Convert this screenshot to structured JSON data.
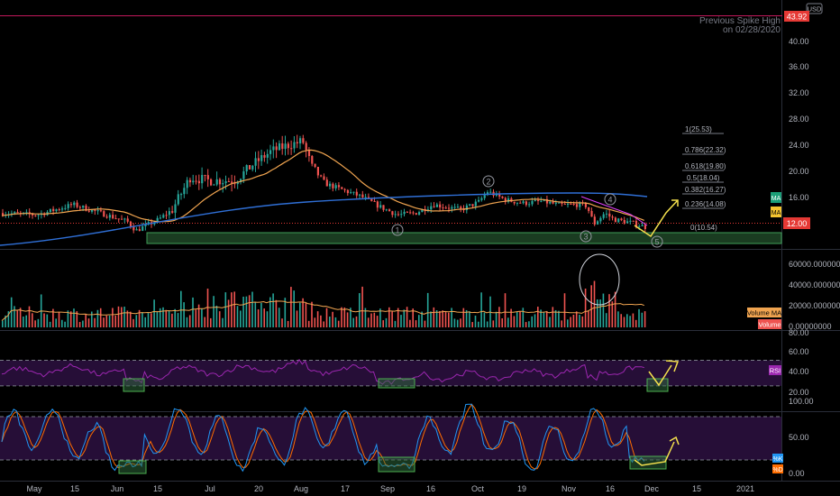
{
  "currency": "USD",
  "colors": {
    "up": "#26a69a",
    "down": "#ef5350",
    "ma_short": "#f0a450",
    "ma_long": "#2f6fd6",
    "rsi": "#9c27b0",
    "k_line": "#2196f3",
    "d_line": "#ff6d00",
    "support_zone": "#2f6e3d",
    "annotation": "#f4e04d",
    "fib": "#787b86",
    "band": "#2a0f3d"
  },
  "price_pane": {
    "spike_label_line1": "Previous Spike High",
    "spike_label_line2": "on 02/28/2020",
    "spike_price": "43.92",
    "ma_badge": "MA",
    "ma_badge_2": "MA",
    "last_price": "12.00",
    "axis_ticks": [
      "40.00",
      "36.00",
      "32.00",
      "28.00",
      "24.00",
      "20.00",
      "16.00",
      "12.00"
    ],
    "wave_labels": [
      "1",
      "2",
      "3",
      "4",
      "5"
    ],
    "fib_levels": [
      "1(25.53)",
      "0.786(22.32)",
      "0.618(19.80)",
      "0.5(18.04)",
      "0.382(16.27)",
      "0.236(14.08)",
      "0(10.54)"
    ]
  },
  "volume_pane": {
    "axis_ticks": [
      "60000.00000000",
      "40000.00000000",
      "20000.00000000",
      "0.00000000"
    ],
    "ma_badge": "Volume MA",
    "badge": "Volume"
  },
  "rsi_pane": {
    "axis_ticks": [
      "80.00",
      "60.00",
      "40.00",
      "20.00"
    ],
    "badge": "RSI"
  },
  "stoch_pane": {
    "axis_ticks": [
      "100.00",
      "50.00",
      "0.00"
    ],
    "badge_k": "%K",
    "badge_d": "%D"
  },
  "time_axis": [
    "May",
    "15",
    "Jun",
    "15",
    "Jul",
    "20",
    "Aug",
    "17",
    "Sep",
    "16",
    "Oct",
    "19",
    "Nov",
    "16",
    "Dec",
    "15",
    "2021"
  ],
  "chart_data": {
    "type": "candlestick",
    "title": "",
    "price_range": [
      8,
      44
    ],
    "price_close_control_points": [
      [
        0,
        13.5
      ],
      [
        40,
        13.2
      ],
      [
        80,
        14.8
      ],
      [
        110,
        13.5
      ],
      [
        140,
        12.2
      ],
      [
        150,
        10.8
      ],
      [
        160,
        11.5
      ],
      [
        175,
        12.5
      ],
      [
        190,
        14.0
      ],
      [
        210,
        19.0
      ],
      [
        230,
        18.5
      ],
      [
        260,
        18.5
      ],
      [
        280,
        21.0
      ],
      [
        300,
        23.0
      ],
      [
        320,
        24.0
      ],
      [
        335,
        24.5
      ],
      [
        345,
        20.5
      ],
      [
        360,
        18.0
      ],
      [
        380,
        17.0
      ],
      [
        400,
        16.0
      ],
      [
        420,
        14.5
      ],
      [
        440,
        13.2
      ],
      [
        460,
        13.5
      ],
      [
        480,
        14.8
      ],
      [
        510,
        14.0
      ],
      [
        530,
        15.2
      ],
      [
        540,
        16.8
      ],
      [
        560,
        15.5
      ],
      [
        580,
        15.0
      ],
      [
        600,
        15.3
      ],
      [
        620,
        14.7
      ],
      [
        640,
        14.8
      ],
      [
        650,
        14.6
      ],
      [
        658,
        11.8
      ],
      [
        670,
        13.5
      ],
      [
        680,
        12.5
      ],
      [
        700,
        12.0
      ],
      [
        718,
        11.2
      ]
    ],
    "volume_range": [
      0,
      70000
    ],
    "rsi_range": [
      20,
      80
    ],
    "rsi_guides": [
      30,
      70
    ],
    "stoch_range": [
      0,
      100
    ],
    "stoch_guides": [
      20,
      80
    ]
  }
}
